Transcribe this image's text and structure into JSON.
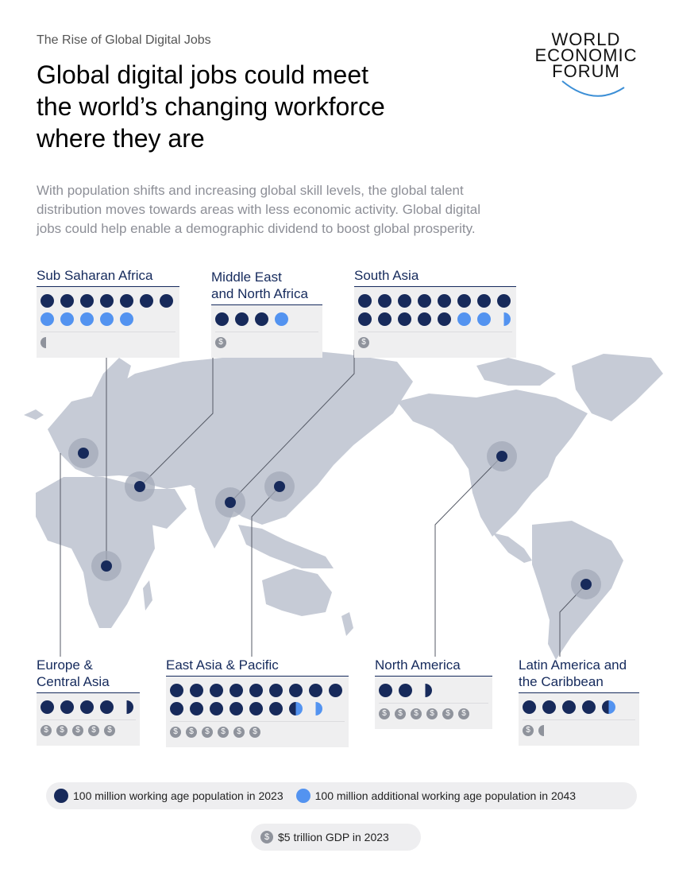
{
  "header": {
    "kicker": "The Rise of Global Digital Jobs",
    "title_lines": [
      "Global digital jobs could meet",
      "the world’s changing workforce",
      "where they are"
    ],
    "subtitle_lines": [
      "With population shifts and increasing global skill levels, the global talent",
      "distribution moves towards areas with less economic activity. Global digital",
      "jobs could help enable a demographic dividend to boost global prosperity."
    ]
  },
  "logo": {
    "lines": [
      "WORLD",
      "ECONOMIC",
      "FORUM"
    ]
  },
  "colors": {
    "population_2023": "#172a5b",
    "additional_2043": "#5393f0",
    "gdp": "#8f939c",
    "land": "#c6cbd6",
    "panel_bg": "#efeff0"
  },
  "regions": [
    {
      "id": "ssa",
      "name_lines": [
        "Sub Saharan Africa"
      ],
      "pop_2023": 7,
      "additional_2043": 5,
      "gdp": 0.5
    },
    {
      "id": "mena",
      "name_lines": [
        "Middle East",
        "and North Africa"
      ],
      "pop_2023": 3,
      "additional_2043": 1,
      "gdp": 1
    },
    {
      "id": "sa",
      "name_lines": [
        "South Asia"
      ],
      "pop_2023": 13,
      "additional_2043": 2.5,
      "gdp": 1
    },
    {
      "id": "eca",
      "name_lines": [
        "Europe &",
        "Central Asia"
      ],
      "pop_2023": 4.5,
      "additional_2043": 0,
      "gdp": 5
    },
    {
      "id": "eap",
      "name_lines": [
        "East Asia & Pacific"
      ],
      "pop_2023": 15.5,
      "additional_2043": 1,
      "gdp": 6
    },
    {
      "id": "na",
      "name_lines": [
        "North America"
      ],
      "pop_2023": 2.5,
      "additional_2043": 0,
      "gdp": 6
    },
    {
      "id": "lac",
      "name_lines": [
        "Latin America and",
        "the Caribbean"
      ],
      "pop_2023": 4.5,
      "additional_2043": 0.5,
      "gdp": 1.5
    }
  ],
  "legend": {
    "population_2023": "100 million working age population in 2023",
    "additional_2043": "100 million additional working age population in 2043",
    "gdp": "$5 trillion GDP in 2023",
    "coin_symbol": "$"
  }
}
